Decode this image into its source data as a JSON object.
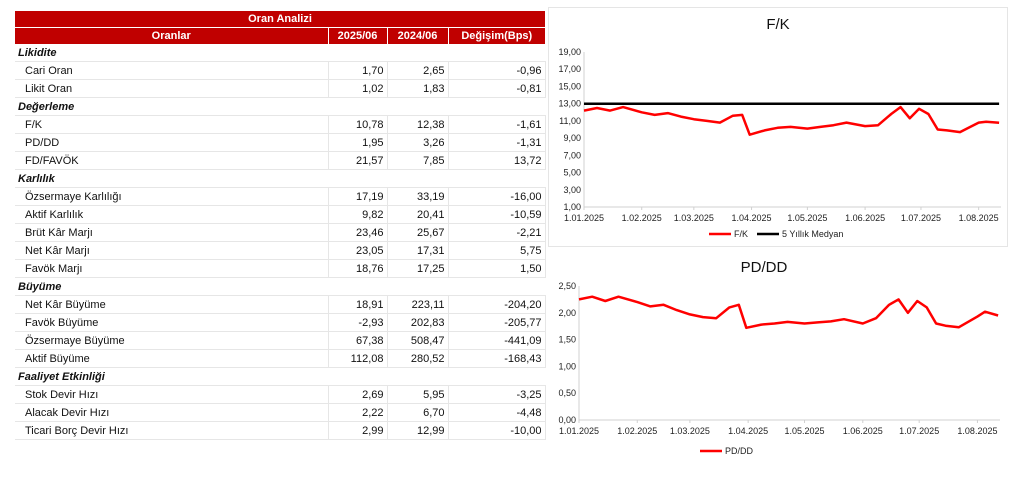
{
  "table": {
    "title": "Oran Analizi",
    "headers": [
      "Oranlar",
      "2025/06",
      "2024/06",
      "Değişim(Bps)"
    ],
    "sections": [
      {
        "name": "Likidite",
        "rows": [
          {
            "label": "Cari Oran",
            "v1": "1,70",
            "v2": "2,65",
            "chg": "-0,96"
          },
          {
            "label": "Likit Oran",
            "v1": "1,02",
            "v2": "1,83",
            "chg": "-0,81"
          }
        ]
      },
      {
        "name": "Değerleme",
        "rows": [
          {
            "label": "F/K",
            "v1": "10,78",
            "v2": "12,38",
            "chg": "-1,61"
          },
          {
            "label": "PD/DD",
            "v1": "1,95",
            "v2": "3,26",
            "chg": "-1,31"
          },
          {
            "label": "FD/FAVÖK",
            "v1": "21,57",
            "v2": "7,85",
            "chg": "13,72"
          }
        ]
      },
      {
        "name": "Karlılık",
        "rows": [
          {
            "label": "Özsermaye Karlılığı",
            "v1": "17,19",
            "v2": "33,19",
            "chg": "-16,00"
          },
          {
            "label": "Aktif Karlılık",
            "v1": "9,82",
            "v2": "20,41",
            "chg": "-10,59"
          },
          {
            "label": "Brüt Kâr Marjı",
            "v1": "23,46",
            "v2": "25,67",
            "chg": "-2,21"
          },
          {
            "label": "Net Kâr Marjı",
            "v1": "23,05",
            "v2": "17,31",
            "chg": "5,75"
          },
          {
            "label": "Favök Marjı",
            "v1": "18,76",
            "v2": "17,25",
            "chg": "1,50"
          }
        ]
      },
      {
        "name": "Büyüme",
        "rows": [
          {
            "label": "Net Kâr Büyüme",
            "v1": "18,91",
            "v2": "223,11",
            "chg": "-204,20"
          },
          {
            "label": "Favök Büyüme",
            "v1": "-2,93",
            "v2": "202,83",
            "chg": "-205,77"
          },
          {
            "label": "Özsermaye Büyüme",
            "v1": "67,38",
            "v2": "508,47",
            "chg": "-441,09"
          },
          {
            "label": "Aktif Büyüme",
            "v1": "112,08",
            "v2": "280,52",
            "chg": "-168,43"
          }
        ]
      },
      {
        "name": "Faaliyet Etkinliği",
        "rows": [
          {
            "label": "Stok Devir Hızı",
            "v1": "2,69",
            "v2": "5,95",
            "chg": "-3,25"
          },
          {
            "label": "Alacak Devir Hızı",
            "v1": "2,22",
            "v2": "6,70",
            "chg": "-4,48"
          },
          {
            "label": "Ticari Borç Devir Hızı",
            "v1": "2,99",
            "v2": "12,99",
            "chg": "-10,00"
          }
        ]
      }
    ]
  },
  "chart_data": [
    {
      "type": "line",
      "title": "F/K",
      "x_tick_labels": [
        "1.01.2025",
        "1.02.2025",
        "1.03.2025",
        "1.04.2025",
        "1.05.2025",
        "1.06.2025",
        "1.07.2025",
        "1.08.2025"
      ],
      "y_tick_labels": [
        "1,00",
        "3,00",
        "5,00",
        "7,00",
        "9,00",
        "11,00",
        "13,00",
        "15,00",
        "17,00",
        "19,00"
      ],
      "ylim": [
        1,
        19
      ],
      "grid": false,
      "legend_position": "bottom",
      "series": [
        {
          "name": "F/K",
          "color": "#ff0000",
          "x": [
            "2025-01-01",
            "2025-01-08",
            "2025-01-15",
            "2025-01-22",
            "2025-02-01",
            "2025-02-08",
            "2025-02-15",
            "2025-02-22",
            "2025-03-01",
            "2025-03-08",
            "2025-03-15",
            "2025-03-22",
            "2025-03-27",
            "2025-03-31",
            "2025-04-08",
            "2025-04-15",
            "2025-04-22",
            "2025-05-01",
            "2025-05-08",
            "2025-05-15",
            "2025-05-22",
            "2025-06-01",
            "2025-06-08",
            "2025-06-15",
            "2025-06-20",
            "2025-06-25",
            "2025-06-30",
            "2025-07-05",
            "2025-07-10",
            "2025-07-15",
            "2025-07-22",
            "2025-08-01",
            "2025-08-05",
            "2025-08-12"
          ],
          "y": [
            12.2,
            12.5,
            12.2,
            12.6,
            12.0,
            11.7,
            11.9,
            11.5,
            11.2,
            11.0,
            10.8,
            11.6,
            11.7,
            9.4,
            9.9,
            10.2,
            10.3,
            10.1,
            10.3,
            10.5,
            10.8,
            10.4,
            10.5,
            11.8,
            12.6,
            11.3,
            12.4,
            11.8,
            10.0,
            9.9,
            9.7,
            10.8,
            10.9,
            10.78
          ]
        },
        {
          "name": "5 Yıllık Medyan",
          "color": "#000000",
          "x": [
            "2025-01-01",
            "2025-08-12"
          ],
          "y": [
            13.0,
            13.0
          ]
        }
      ]
    },
    {
      "type": "line",
      "title": "PD/DD",
      "x_tick_labels": [
        "1.01.2025",
        "1.02.2025",
        "1.03.2025",
        "1.04.2025",
        "1.05.2025",
        "1.06.2025",
        "1.07.2025",
        "1.08.2025"
      ],
      "y_tick_labels": [
        "0,00",
        "0,50",
        "1,00",
        "1,50",
        "2,00",
        "2,50"
      ],
      "ylim": [
        0,
        2.5
      ],
      "grid": false,
      "legend_position": "bottom",
      "series": [
        {
          "name": "PD/DD",
          "color": "#ff0000",
          "x": [
            "2025-01-01",
            "2025-01-08",
            "2025-01-15",
            "2025-01-22",
            "2025-02-01",
            "2025-02-08",
            "2025-02-15",
            "2025-02-22",
            "2025-03-01",
            "2025-03-08",
            "2025-03-15",
            "2025-03-22",
            "2025-03-27",
            "2025-03-31",
            "2025-04-08",
            "2025-04-15",
            "2025-04-22",
            "2025-05-01",
            "2025-05-08",
            "2025-05-15",
            "2025-05-22",
            "2025-06-01",
            "2025-06-08",
            "2025-06-15",
            "2025-06-20",
            "2025-06-25",
            "2025-06-30",
            "2025-07-05",
            "2025-07-10",
            "2025-07-15",
            "2025-07-22",
            "2025-08-01",
            "2025-08-05",
            "2025-08-12"
          ],
          "y": [
            2.25,
            2.3,
            2.22,
            2.3,
            2.2,
            2.12,
            2.15,
            2.05,
            1.97,
            1.92,
            1.9,
            2.1,
            2.15,
            1.72,
            1.78,
            1.8,
            1.83,
            1.8,
            1.82,
            1.84,
            1.88,
            1.8,
            1.9,
            2.15,
            2.25,
            2.0,
            2.22,
            2.1,
            1.8,
            1.76,
            1.73,
            1.93,
            2.02,
            1.95
          ]
        }
      ]
    }
  ]
}
